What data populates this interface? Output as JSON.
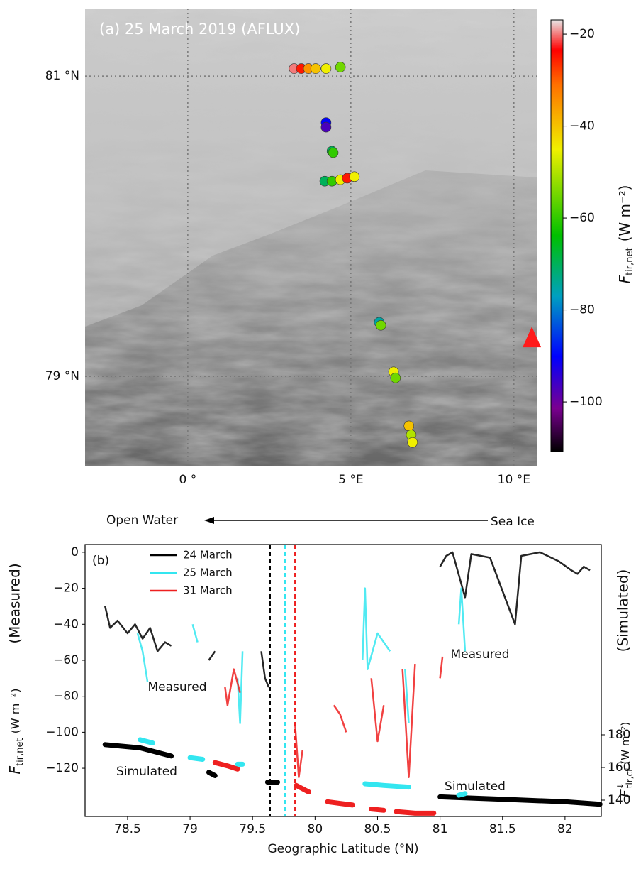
{
  "chart_data": [
    {
      "type": "map-scatter",
      "title": "(a) 25 March 2019 (AFLUX)",
      "xlim": [
        -3.15,
        10.7
      ],
      "ylim": [
        78.4,
        81.45
      ],
      "xticks": [
        {
          "value": 0,
          "label": "0 °"
        },
        {
          "value": 5,
          "label": "5 °E"
        },
        {
          "value": 10,
          "label": "10 °E"
        }
      ],
      "yticks": [
        {
          "value": 81,
          "label": "81 °N"
        },
        {
          "value": 79,
          "label": "79 °N"
        }
      ],
      "x": [
        3.26,
        3.48,
        3.7,
        3.92,
        4.24,
        4.68,
        4.24,
        4.24,
        4.42,
        4.46,
        4.2,
        4.42,
        4.68,
        4.89,
        5.11,
        5.87,
        5.92,
        6.31,
        6.37,
        6.78,
        6.85,
        6.89
      ],
      "y": [
        81.05,
        81.05,
        81.05,
        81.05,
        81.05,
        81.06,
        80.69,
        80.66,
        80.5,
        80.49,
        80.3,
        80.3,
        80.31,
        80.32,
        80.33,
        79.36,
        79.34,
        79.03,
        78.99,
        78.67,
        78.61,
        78.56
      ],
      "values": [
        -20,
        -25,
        -35,
        -40,
        -45,
        -55,
        -90,
        -97,
        -70,
        -60,
        -70,
        -60,
        -45,
        -25,
        -45,
        -75,
        -55,
        -45,
        -55,
        -40,
        -50,
        -45
      ],
      "station": {
        "x": 10.55,
        "y": 79.26,
        "color": "#ff1a1a"
      },
      "colorbar": {
        "label": "F",
        "label_sub": "tir,net",
        "label_unit": "(W m⁻²)",
        "lim": [
          -110.8,
          -16.9
        ],
        "ticks": [
          {
            "value": -20,
            "label": "−20"
          },
          {
            "value": -40,
            "label": "−40"
          },
          {
            "value": -60,
            "label": "−60"
          },
          {
            "value": -80,
            "label": "−80"
          },
          {
            "value": -100,
            "label": "−100"
          }
        ]
      },
      "colormap": [
        [
          0,
          "#000000"
        ],
        [
          0.1,
          "#7a0090"
        ],
        [
          0.22,
          "#0000ff"
        ],
        [
          0.36,
          "#00a0c0"
        ],
        [
          0.5,
          "#00c000"
        ],
        [
          0.7,
          "#f0f000"
        ],
        [
          0.85,
          "#ff7000"
        ],
        [
          0.93,
          "#ff0000"
        ],
        [
          1,
          "#e8e8e8"
        ]
      ]
    },
    {
      "type": "line",
      "panel_label": "(b)",
      "direction_left": "Open Water",
      "direction_right": "Sea Ice",
      "xlabel": "Geographic Latitude (°N)",
      "ylabel": "F",
      "ylabel_sub": "tir,net",
      "ylabel_unit": "(W m⁻²)",
      "ylabel_kind": "(Measured)",
      "y2label": "F",
      "y2label_sup": "↓",
      "y2label_sub": "tir,cf",
      "y2label_unit": "(W m⁻²)",
      "y2label_kind": "(Simulated)",
      "xlim": [
        78.16,
        82.29
      ],
      "ylim": [
        -146.8,
        4.3
      ],
      "y2lim": [
        130,
        296.5
      ],
      "xticks": [
        78.5,
        79,
        79.5,
        80,
        80.5,
        81,
        81.5,
        82
      ],
      "yticks": [
        0,
        {
          "value": -20,
          "label": "−20"
        },
        {
          "value": -40,
          "label": "−40"
        },
        {
          "value": -60,
          "label": "−60"
        },
        {
          "value": -80,
          "label": "−80"
        },
        {
          "value": -100,
          "label": "−100"
        },
        {
          "value": -120,
          "label": "−120"
        }
      ],
      "y2ticks": [
        140,
        160,
        180
      ],
      "annotations": [
        "Measured",
        "Measured",
        "Simulated",
        "Simulated"
      ],
      "series": [
        {
          "name": "24 March",
          "color": "#000000",
          "divide": 79.64,
          "x": [
            78.32,
            78.36,
            78.42,
            78.5,
            78.56,
            78.62,
            78.68,
            78.74,
            78.8,
            78.85,
            79.0,
            79.15,
            79.2,
            79.4,
            79.57,
            79.6,
            79.63,
            80.9,
            81.0,
            81.05,
            81.1,
            81.2,
            81.25,
            81.4,
            81.6,
            81.65,
            81.8,
            81.95,
            82.05,
            82.1,
            82.15,
            82.2
          ],
          "values": [
            -30,
            -42,
            -38,
            -45,
            -40,
            -48,
            -42,
            -55,
            -50,
            -52,
            null,
            -60,
            -55,
            null,
            -55,
            -70,
            -75,
            null,
            -8,
            -2,
            0,
            -25,
            -1,
            -3,
            -40,
            -2,
            0,
            -5,
            -10,
            -12,
            -8,
            -10
          ],
          "simulated": {
            "axis": "y2",
            "x": [
              78.32,
              78.6,
              78.85,
              79.0,
              79.15,
              79.2,
              79.4,
              79.62,
              79.7,
              80.5,
              81.0,
              81.5,
              82.0,
              82.28
            ],
            "values": [
              174,
              172,
              167,
              null,
              157,
              155,
              null,
              151,
              151,
              null,
              142,
              140.5,
              139,
              137.5
            ]
          }
        },
        {
          "name": "25 March",
          "color": "#33e6f0",
          "divide": 79.76,
          "x": [
            78.58,
            78.62,
            78.66,
            78.8,
            79.02,
            79.06,
            79.2,
            79.38,
            79.4,
            79.42,
            80.2,
            80.38,
            80.4,
            80.42,
            80.5,
            80.55,
            80.6,
            80.65,
            80.72,
            80.75,
            81.0,
            81.15,
            81.17,
            81.2
          ],
          "values": [
            -45,
            -55,
            -72,
            null,
            -40,
            -50,
            null,
            -70,
            -95,
            -55,
            null,
            -60,
            -20,
            -65,
            -45,
            -50,
            -55,
            null,
            -65,
            -95,
            null,
            -40,
            -20,
            -55
          ],
          "simulated": {
            "axis": "y2",
            "x": [
              78.6,
              78.7,
              78.85,
              79.0,
              79.1,
              79.25,
              79.38,
              79.42,
              79.9,
              80.4,
              80.55,
              80.75,
              80.95,
              81.15,
              81.2
            ],
            "values": [
              177,
              175,
              null,
              166,
              165,
              null,
              162,
              162,
              null,
              150,
              149,
              148,
              null,
              143,
              144
            ]
          }
        },
        {
          "name": "31 March",
          "color": "#ee2020",
          "divide": 79.84,
          "x": [
            79.28,
            79.3,
            79.35,
            79.4,
            79.6,
            79.84,
            79.87,
            79.9,
            80.1,
            80.15,
            80.2,
            80.25,
            80.35,
            80.45,
            80.5,
            80.55,
            80.6,
            80.7,
            80.75,
            80.8,
            80.9,
            81.0,
            81.02
          ],
          "values": [
            -75,
            -85,
            -65,
            -78,
            null,
            -95,
            -125,
            -110,
            null,
            -85,
            -90,
            -100,
            null,
            -70,
            -105,
            -85,
            null,
            -65,
            -125,
            -62,
            null,
            -70,
            -58
          ],
          "simulated": {
            "axis": "y2",
            "x": [
              79.2,
              79.3,
              79.38,
              79.6,
              79.85,
              79.95,
              80.02,
              80.1,
              80.3,
              80.38,
              80.45,
              80.55,
              80.6,
              80.65,
              80.8,
              80.95
            ],
            "values": [
              163,
              161,
              159,
              null,
              149,
              145,
              null,
              139,
              137,
              null,
              134.5,
              133.8,
              null,
              133,
              132,
              132
            ]
          }
        }
      ]
    }
  ]
}
